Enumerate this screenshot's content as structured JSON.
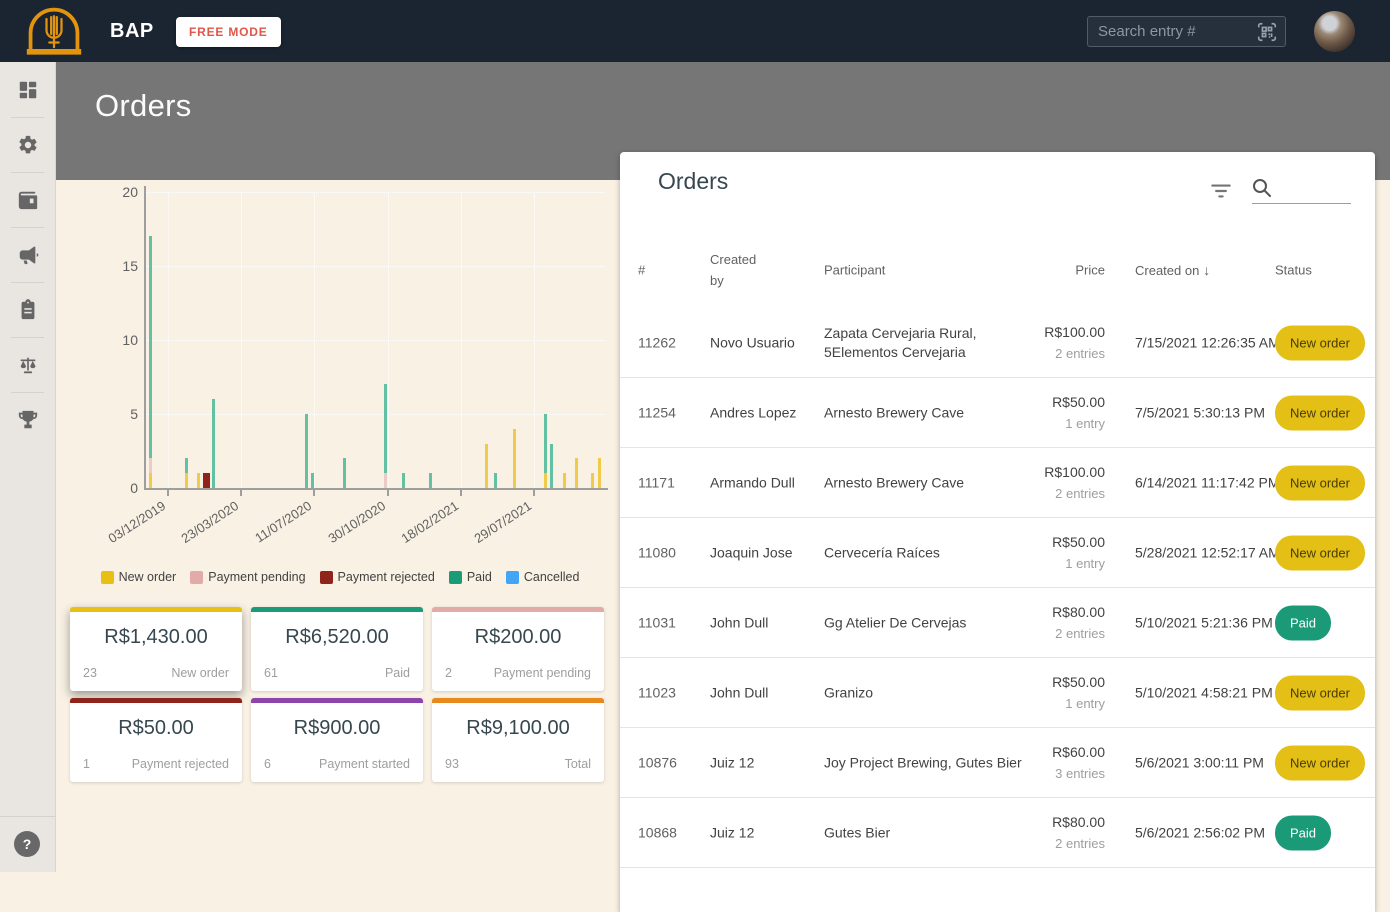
{
  "topbar": {
    "brand": "BAP",
    "free_mode_label": "FREE MODE",
    "search_placeholder": "Search entry #"
  },
  "sidebar": {
    "items": [
      {
        "id": "dashboard",
        "icon": "dashboard-icon"
      },
      {
        "id": "settings",
        "icon": "gear-icon"
      },
      {
        "id": "payments",
        "icon": "wallet-icon"
      },
      {
        "id": "announcements",
        "icon": "megaphone-icon"
      },
      {
        "id": "entries",
        "icon": "clipboard-icon"
      },
      {
        "id": "judging",
        "icon": "scale-icon"
      },
      {
        "id": "awards",
        "icon": "trophy-icon"
      }
    ],
    "help_label": "?"
  },
  "page": {
    "title": "Orders"
  },
  "chart_data": {
    "type": "bar",
    "title": "",
    "x_axis_type": "time",
    "x_tick_labels": [
      "03/12/2019",
      "23/03/2020",
      "11/07/2020",
      "30/10/2020",
      "18/02/2021",
      "29/07/2021"
    ],
    "y_ticks": [
      0,
      5,
      10,
      15,
      20
    ],
    "ylim": [
      0,
      20
    ],
    "grid": true,
    "legend_position": "bottom",
    "legend": [
      {
        "label": "New order",
        "color": "#e8c013"
      },
      {
        "label": "Payment pending",
        "color": "#e2aba7"
      },
      {
        "label": "Payment rejected",
        "color": "#8e241c"
      },
      {
        "label": "Paid",
        "color": "#1b9c78"
      },
      {
        "label": "Cancelled",
        "color": "#42a5f5"
      }
    ],
    "bar_palette": {
      "New order": "#eecb4a",
      "Payment pending": "#eccbc5",
      "Payment rejected": "#8e241c",
      "Paid": "#63c0a3",
      "Cancelled": "#42a5f5"
    },
    "bars": [
      {
        "x_frac": 0.011,
        "stack": [
          [
            "New order",
            1
          ],
          [
            "Payment pending",
            1
          ],
          [
            "Paid",
            15
          ]
        ]
      },
      {
        "x_frac": 0.091,
        "stack": [
          [
            "New order",
            1
          ],
          [
            "Paid",
            1
          ]
        ]
      },
      {
        "x_frac": 0.117,
        "stack": [
          [
            "New order",
            1
          ]
        ]
      },
      {
        "x_frac": 0.133,
        "w": 7,
        "stack": [
          [
            "Payment rejected",
            1
          ]
        ]
      },
      {
        "x_frac": 0.148,
        "stack": [
          [
            "Paid",
            6
          ]
        ]
      },
      {
        "x_frac": 0.352,
        "stack": [
          [
            "Paid",
            5
          ]
        ]
      },
      {
        "x_frac": 0.365,
        "stack": [
          [
            "Paid",
            1
          ]
        ]
      },
      {
        "x_frac": 0.433,
        "stack": [
          [
            "Paid",
            2
          ]
        ]
      },
      {
        "x_frac": 0.522,
        "stack": [
          [
            "Payment pending",
            1
          ],
          [
            "Paid",
            6
          ]
        ]
      },
      {
        "x_frac": 0.561,
        "stack": [
          [
            "Paid",
            1
          ]
        ]
      },
      {
        "x_frac": 0.62,
        "stack": [
          [
            "Paid",
            1
          ]
        ]
      },
      {
        "x_frac": 0.743,
        "stack": [
          [
            "New order",
            3
          ]
        ]
      },
      {
        "x_frac": 0.761,
        "stack": [
          [
            "Paid",
            1
          ]
        ]
      },
      {
        "x_frac": 0.804,
        "stack": [
          [
            "New order",
            4
          ]
        ]
      },
      {
        "x_frac": 0.87,
        "stack": [
          [
            "New order",
            1
          ],
          [
            "Paid",
            4
          ]
        ]
      },
      {
        "x_frac": 0.883,
        "stack": [
          [
            "Paid",
            3
          ]
        ]
      },
      {
        "x_frac": 0.913,
        "stack": [
          [
            "New order",
            1
          ]
        ]
      },
      {
        "x_frac": 0.939,
        "stack": [
          [
            "New order",
            2
          ]
        ]
      },
      {
        "x_frac": 0.972,
        "stack": [
          [
            "New order",
            1
          ]
        ]
      },
      {
        "x_frac": 0.989,
        "stack": [
          [
            "New order",
            2
          ]
        ]
      }
    ]
  },
  "summary_cards": [
    {
      "value": "R$1,430.00",
      "count": "23",
      "label": "New order",
      "color": "#e8c013",
      "elevated": true
    },
    {
      "value": "R$6,520.00",
      "count": "61",
      "label": "Paid",
      "color": "#1b9c78",
      "elevated": false
    },
    {
      "value": "R$200.00",
      "count": "2",
      "label": "Payment pending",
      "color": "#e2aba7",
      "elevated": false
    },
    {
      "value": "R$50.00",
      "count": "1",
      "label": "Payment rejected",
      "color": "#8e241c",
      "elevated": false
    },
    {
      "value": "R$900.00",
      "count": "6",
      "label": "Payment started",
      "color": "#8e44ad",
      "elevated": false
    },
    {
      "value": "R$9,100.00",
      "count": "93",
      "label": "Total",
      "color": "#e8891d",
      "elevated": false
    }
  ],
  "orders_panel": {
    "title": "Orders",
    "columns": [
      "#",
      "Created by",
      "Participant",
      "Price",
      "Created on",
      "Status"
    ],
    "sort_column": "Created on",
    "sort_direction": "desc",
    "sort_arrow": "↓",
    "status_styles": {
      "new_order": {
        "bg": "#e4bf15",
        "text": "#4a3c03"
      },
      "paid": {
        "bg": "#1b9a78",
        "text": "#ffffff"
      }
    },
    "rows": [
      {
        "id": "11262",
        "created_by": "Novo Usuario",
        "participant": "Zapata Cervejaria Rural, 5Elementos Cervejaria",
        "price": "R$100.00",
        "entries": "2 entries",
        "created_on": "7/15/2021 12:26:35 AM",
        "status": "New order",
        "status_key": "new_order"
      },
      {
        "id": "11254",
        "created_by": "Andres Lopez",
        "participant": "Arnesto Brewery Cave",
        "price": "R$50.00",
        "entries": "1 entry",
        "created_on": "7/5/2021 5:30:13 PM",
        "status": "New order",
        "status_key": "new_order"
      },
      {
        "id": "11171",
        "created_by": "Armando Dull",
        "participant": "Arnesto Brewery Cave",
        "price": "R$100.00",
        "entries": "2 entries",
        "created_on": "6/14/2021 11:17:42 PM",
        "status": "New order",
        "status_key": "new_order"
      },
      {
        "id": "11080",
        "created_by": "Joaquin Jose",
        "participant": "Cervecería Raíces",
        "price": "R$50.00",
        "entries": "1 entry",
        "created_on": "5/28/2021 12:52:17 AM",
        "status": "New order",
        "status_key": "new_order"
      },
      {
        "id": "11031",
        "created_by": "John Dull",
        "participant": "Gg Atelier De Cervejas",
        "price": "R$80.00",
        "entries": "2 entries",
        "created_on": "5/10/2021 5:21:36 PM",
        "status": "Paid",
        "status_key": "paid"
      },
      {
        "id": "11023",
        "created_by": "John Dull",
        "participant": "Granizo",
        "price": "R$50.00",
        "entries": "1 entry",
        "created_on": "5/10/2021 4:58:21 PM",
        "status": "New order",
        "status_key": "new_order"
      },
      {
        "id": "10876",
        "created_by": "Juiz 12",
        "participant": "Joy Project Brewing, Gutes Bier",
        "price": "R$60.00",
        "entries": "3 entries",
        "created_on": "5/6/2021 3:00:11 PM",
        "status": "New order",
        "status_key": "new_order"
      },
      {
        "id": "10868",
        "created_by": "Juiz 12",
        "participant": "Gutes Bier",
        "price": "R$80.00",
        "entries": "2 entries",
        "created_on": "5/6/2021 2:56:02 PM",
        "status": "Paid",
        "status_key": "paid"
      }
    ]
  }
}
